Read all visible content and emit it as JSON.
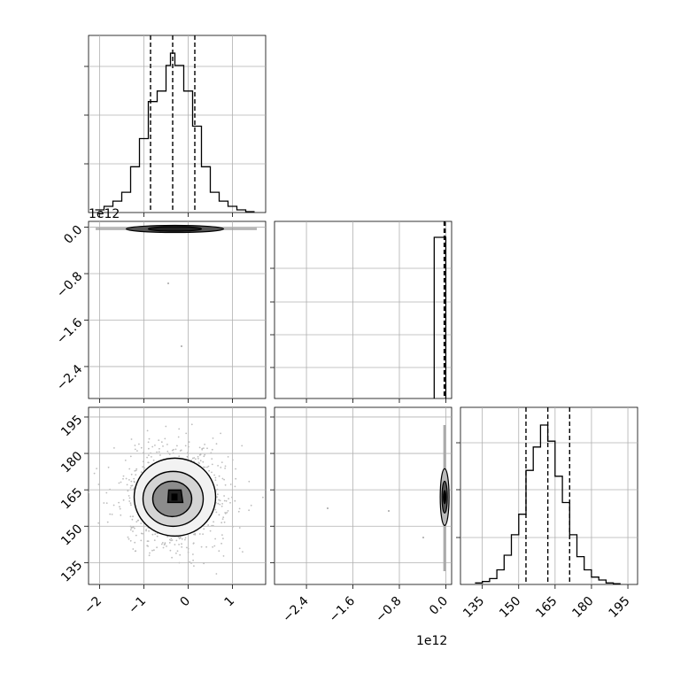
{
  "chart_data": [
    {
      "panel": "hist-0",
      "type": "step-histogram",
      "x_offset_label": "1e12",
      "x_ticks": [
        -2,
        -1,
        0,
        1
      ],
      "x_tick_labels": [
        "−2",
        "−1",
        "0",
        "1"
      ],
      "xlim": [
        -2.25,
        1.75
      ],
      "bin_edges": [
        -2.1,
        -1.9,
        -1.7,
        -1.5,
        -1.3,
        -1.1,
        -0.9,
        -0.7,
        -0.5,
        -0.4,
        -0.3,
        -0.1,
        0.1,
        0.3,
        0.5,
        0.7,
        0.9,
        1.1,
        1.3,
        1.5
      ],
      "counts": [
        3,
        7,
        13,
        23,
        52,
        84,
        126,
        138,
        167,
        181,
        167,
        138,
        98,
        52,
        23,
        13,
        7,
        3,
        1
      ],
      "quantile_lines": [
        -0.85,
        -0.35,
        0.15
      ],
      "grid": true
    },
    {
      "panel": "scatter-1-0",
      "type": "2d-density-contour",
      "xlim": [
        -2.25,
        1.75
      ],
      "ylim": [
        -2.95,
        0.1
      ],
      "y_offset_label": "1e12",
      "y_ticks": [
        0.0,
        -0.8,
        -1.6,
        -2.4
      ],
      "y_tick_labels": [
        "0.0",
        "−0.8",
        "−1.6",
        "−2.4"
      ],
      "center": [
        -0.3,
        -0.03
      ],
      "grid": true
    },
    {
      "panel": "hist-1",
      "type": "step-histogram",
      "xlim": [
        -2.95,
        0.1
      ],
      "bin_edges": [
        -0.2,
        -0.05,
        0.0
      ],
      "counts": [
        1,
        1
      ],
      "quantile_lines": [
        -0.03,
        -0.02,
        -0.01
      ],
      "grid": true
    },
    {
      "panel": "scatter-2-0",
      "type": "2d-density-contour",
      "xlim": [
        -2.25,
        1.75
      ],
      "ylim": [
        126,
        199
      ],
      "x_ticks": [
        -2,
        -1,
        0,
        1
      ],
      "x_tick_labels": [
        "−2",
        "−1",
        "0",
        "1"
      ],
      "y_ticks": [
        135,
        150,
        165,
        180,
        195
      ],
      "y_tick_labels": [
        "135",
        "150",
        "165",
        "180",
        "195"
      ],
      "center": [
        -0.3,
        162
      ],
      "grid": true
    },
    {
      "panel": "scatter-2-1",
      "type": "2d-density-contour",
      "xlim": [
        -2.95,
        0.1
      ],
      "ylim": [
        126,
        199
      ],
      "x_offset_label": "1e12",
      "x_ticks": [
        -2.4,
        -1.6,
        -0.8,
        0.0
      ],
      "x_tick_labels": [
        "−2.4",
        "−1.6",
        "−0.8",
        "0.0"
      ],
      "center": [
        -0.02,
        162
      ],
      "grid": true
    },
    {
      "panel": "hist-2",
      "type": "step-histogram",
      "xlim": [
        126,
        199
      ],
      "x_ticks": [
        135,
        150,
        165,
        180,
        195
      ],
      "x_tick_labels": [
        "135",
        "150",
        "165",
        "180",
        "195"
      ],
      "bin_edges": [
        132,
        135,
        138,
        141,
        144,
        147,
        150,
        153,
        156,
        159,
        162,
        165,
        168,
        171,
        174,
        177,
        180,
        183,
        186,
        189,
        192
      ],
      "counts": [
        1,
        2,
        4,
        10,
        20,
        34,
        48,
        78,
        94,
        109,
        98,
        74,
        56,
        34,
        19,
        10,
        5,
        3,
        1,
        0.5
      ],
      "quantile_lines": [
        153,
        162,
        171
      ],
      "grid": true
    }
  ]
}
